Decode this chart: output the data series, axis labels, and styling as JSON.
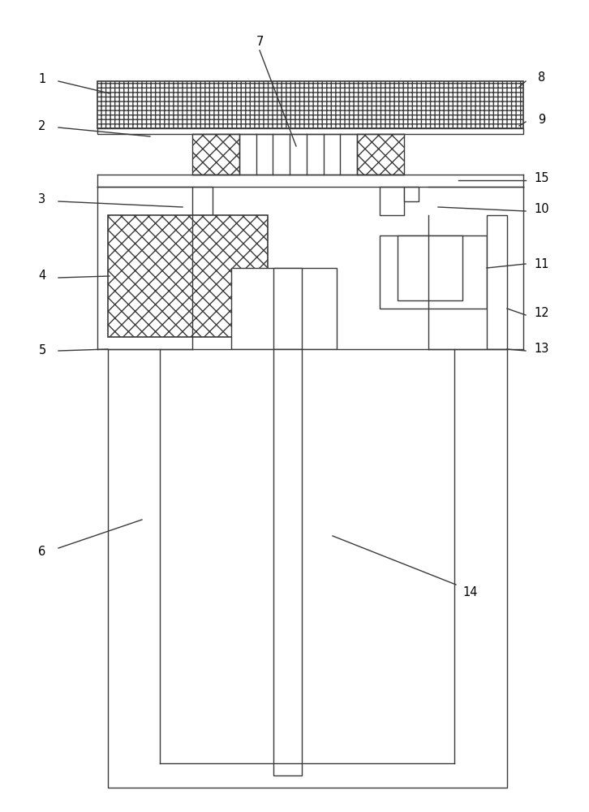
{
  "bg_color": "#ffffff",
  "line_color": "#3a3a3a",
  "line_width": 1.0,
  "figsize": [
    7.26,
    10.0
  ],
  "dpi": 100
}
